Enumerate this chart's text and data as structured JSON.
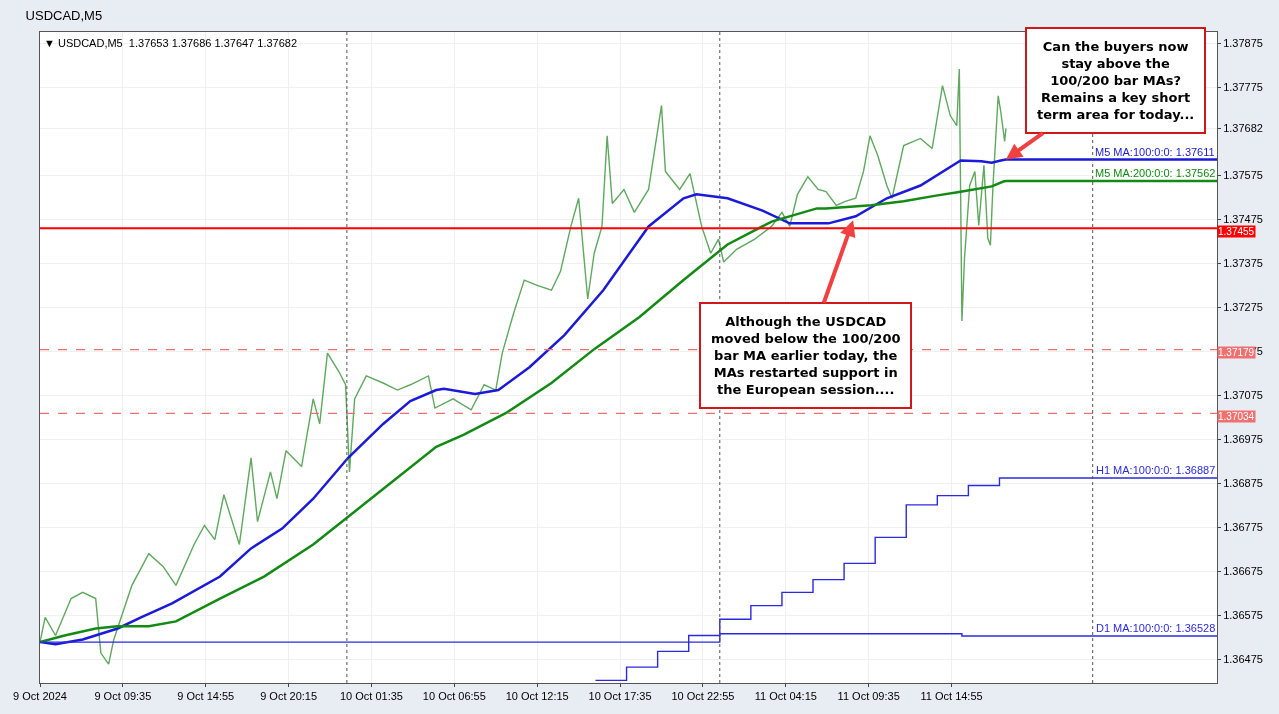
{
  "chart_data": {
    "type": "line",
    "title": "USDCAD,M5",
    "subtitle": "▼ USDCAD,M5  1.37653 1.37686 1.37647 1.37682",
    "x": [
      "2024-10-09T04:15",
      "2024-10-09T04:35",
      "2024-10-09T05:15",
      "2024-10-09T06:15",
      "2024-10-09T07:00",
      "2024-10-09T07:50",
      "2024-10-09T08:10",
      "2024-10-09T08:40",
      "2024-10-09T09:00",
      "2024-10-09T10:10",
      "2024-10-09T11:15",
      "2024-10-09T12:10",
      "2024-10-09T13:00",
      "2024-10-09T14:10",
      "2024-10-09T14:50",
      "2024-10-09T15:30",
      "2024-10-09T16:05",
      "2024-10-09T17:05",
      "2024-10-09T17:50",
      "2024-10-09T18:15",
      "2024-10-09T19:05",
      "2024-10-09T19:30",
      "2024-10-09T20:05",
      "2024-10-09T21:05",
      "2024-10-09T21:50",
      "2024-10-09T22:15",
      "2024-10-09T22:45",
      "2024-10-09T23:30",
      "2024-10-09T23:55",
      "2024-10-10T00:10",
      "2024-10-10T00:30",
      "2024-10-10T01:15",
      "2024-10-10T02:20",
      "2024-10-10T03:15",
      "2024-10-10T04:05",
      "2024-10-10T05:15",
      "2024-10-10T05:40",
      "2024-10-10T06:50",
      "2024-10-10T08:00",
      "2024-10-10T08:50",
      "2024-10-10T09:35",
      "2024-10-10T10:00",
      "2024-10-10T10:45",
      "2024-10-10T11:25",
      "2024-10-10T12:15",
      "2024-10-10T13:10",
      "2024-10-10T13:45",
      "2024-10-10T14:25",
      "2024-10-10T14:55",
      "2024-10-10T15:30",
      "2024-10-10T15:55",
      "2024-10-10T16:25",
      "2024-10-10T16:45",
      "2024-10-10T17:05",
      "2024-10-10T17:50",
      "2024-10-10T18:30",
      "2024-10-10T19:25",
      "2024-10-10T20:15",
      "2024-10-10T20:30",
      "2024-10-10T21:25",
      "2024-10-10T22:05",
      "2024-10-10T22:50",
      "2024-10-10T23:25",
      "2024-10-10T23:55",
      "2024-10-11T00:15",
      "2024-10-11T01:05",
      "2024-10-11T02:15",
      "2024-10-11T03:20",
      "2024-10-11T04:00",
      "2024-10-11T04:30",
      "2024-10-11T05:00",
      "2024-10-11T05:40",
      "2024-10-11T06:20",
      "2024-10-11T06:50",
      "2024-10-11T07:30",
      "2024-10-11T08:05",
      "2024-10-11T08:45",
      "2024-10-11T09:15",
      "2024-10-11T09:40",
      "2024-10-11T10:10",
      "2024-10-11T10:45",
      "2024-10-11T11:05",
      "2024-10-11T11:50",
      "2024-10-11T12:55",
      "2024-10-11T13:40",
      "2024-10-11T14:20",
      "2024-10-11T14:50",
      "2024-10-11T15:15",
      "2024-10-11T15:25",
      "2024-10-11T15:35",
      "2024-10-11T15:45",
      "2024-10-11T16:05",
      "2024-10-11T16:25",
      "2024-10-11T16:40",
      "2024-10-11T17:00",
      "2024-10-11T17:15",
      "2024-10-11T17:25",
      "2024-10-11T17:35",
      "2024-10-11T17:55",
      "2024-10-11T18:05",
      "2024-10-11T18:20",
      "2024-10-11T18:25"
    ],
    "series": [
      {
        "color": "#5fa85f",
        "values": [
          1.36514,
          1.3657,
          1.36529,
          1.36613,
          1.36627,
          1.36613,
          1.36489,
          1.36464,
          1.3652,
          1.36643,
          1.36715,
          1.36686,
          1.36643,
          1.36736,
          1.36779,
          1.36747,
          1.36849,
          1.36736,
          1.36933,
          1.36788,
          1.36901,
          1.3684,
          1.36949,
          1.36913,
          1.37067,
          1.3701,
          1.37171,
          1.37128,
          1.37099,
          1.36901,
          1.37067,
          1.37119,
          1.37103,
          1.37087,
          1.37099,
          1.37119,
          1.37046,
          1.37067,
          1.37042,
          1.37099,
          1.37087,
          1.37171,
          1.37264,
          1.37337,
          1.37325,
          1.37314,
          1.37357,
          1.37459,
          1.37523,
          1.37294,
          1.37398,
          1.37459,
          1.37665,
          1.37511,
          1.37543,
          1.37491,
          1.37543,
          1.37734,
          1.37584,
          1.37543,
          1.37579,
          1.37459,
          1.37398,
          1.3743,
          1.37378,
          1.37407,
          1.3743,
          1.37459,
          1.37491,
          1.37459,
          1.37532,
          1.37572,
          1.37543,
          1.37538,
          1.37507,
          1.37516,
          1.37523,
          1.37584,
          1.37665,
          1.3762,
          1.37552,
          1.37523,
          1.37643,
          1.37659,
          1.37636,
          1.37779,
          1.37711,
          1.37688,
          1.37817,
          1.37244,
          1.37387,
          1.37552,
          1.37584,
          1.37461,
          1.37598,
          1.37432,
          1.37416,
          1.37552,
          1.37756,
          1.3772,
          1.37652,
          1.37682
        ]
      },
      {
        "name": "M5 MA:100:0:0: 1.37611",
        "color": "#1a1ad8",
        "x": [
          "2024-10-09T04:15",
          "2024-10-09T05:15",
          "2024-10-09T07:00",
          "2024-10-09T09:15",
          "2024-10-09T10:45",
          "2024-10-09T12:45",
          "2024-10-09T15:50",
          "2024-10-09T17:50",
          "2024-10-09T19:50",
          "2024-10-09T21:50",
          "2024-10-10T00:05",
          "2024-10-10T02:20",
          "2024-10-10T04:05",
          "2024-10-10T05:45",
          "2024-10-10T06:15",
          "2024-10-10T08:15",
          "2024-10-10T09:45",
          "2024-10-10T11:45",
          "2024-10-10T14:00",
          "2024-10-10T16:30",
          "2024-10-10T19:25",
          "2024-10-10T21:40",
          "2024-10-10T22:30",
          "2024-10-11T00:30",
          "2024-10-11T02:45",
          "2024-10-11T04:30",
          "2024-10-11T07:00",
          "2024-10-11T08:45",
          "2024-10-11T10:45",
          "2024-10-11T12:55",
          "2024-10-11T15:30",
          "2024-10-11T16:50",
          "2024-10-11T17:30",
          "2024-10-11T18:05",
          "2024-10-11T18:25",
          "2024-10-12T08:00"
        ],
        "values": [
          1.36514,
          1.36509,
          1.3652,
          1.36545,
          1.3657,
          1.36602,
          1.36663,
          1.36727,
          1.36772,
          1.3684,
          1.36933,
          1.3701,
          1.37062,
          1.37087,
          1.3709,
          1.37078,
          1.37087,
          1.37139,
          1.37212,
          1.37314,
          1.37459,
          1.37523,
          1.37532,
          1.37523,
          1.37495,
          1.37466,
          1.37466,
          1.37482,
          1.37523,
          1.37552,
          1.37609,
          1.37607,
          1.37604,
          1.37609,
          1.37611,
          1.37611
        ]
      },
      {
        "name": "M5 MA:200:0:0: 1.37562",
        "color": "#138a13",
        "x": [
          "2024-10-09T04:15",
          "2024-10-09T05:50",
          "2024-10-09T07:50",
          "2024-10-09T09:15",
          "2024-10-09T11:15",
          "2024-10-09T13:00",
          "2024-10-09T15:50",
          "2024-10-09T18:40",
          "2024-10-09T21:50",
          "2024-10-10T00:05",
          "2024-10-10T03:00",
          "2024-10-10T05:45",
          "2024-10-10T07:30",
          "2024-10-10T10:15",
          "2024-10-10T13:10",
          "2024-10-10T15:55",
          "2024-10-10T18:50",
          "2024-10-10T21:40",
          "2024-10-11T00:30",
          "2024-10-11T03:20",
          "2024-10-11T06:15",
          "2024-10-11T06:50",
          "2024-10-11T09:45",
          "2024-10-11T11:50",
          "2024-10-11T13:55",
          "2024-10-11T15:30",
          "2024-10-11T17:30",
          "2024-10-11T18:15",
          "2024-10-11T18:25",
          "2024-10-12T08:00"
        ],
        "values": [
          1.36514,
          1.36529,
          1.36545,
          1.3655,
          1.3655,
          1.36561,
          1.36613,
          1.36663,
          1.36736,
          1.36799,
          1.36881,
          1.36958,
          1.36985,
          1.37035,
          1.37103,
          1.3718,
          1.37253,
          1.37337,
          1.37418,
          1.3747,
          1.375,
          1.375,
          1.37507,
          1.37516,
          1.37529,
          1.37538,
          1.3755,
          1.37561,
          1.37562,
          1.37562
        ]
      },
      {
        "name": "H1 MA:100:0:0: 1.36887",
        "color": "#2a2ae0",
        "type": "step",
        "x": [
          "2024-10-10T16:00",
          "2024-10-10T18:00",
          "2024-10-10T20:00",
          "2024-10-10T22:00",
          "2024-10-11T00:00",
          "2024-10-11T02:00",
          "2024-10-11T04:00",
          "2024-10-11T06:00",
          "2024-10-11T08:00",
          "2024-10-11T10:00",
          "2024-10-11T12:00",
          "2024-10-11T14:00",
          "2024-10-11T16:00",
          "2024-10-11T18:00",
          "2024-10-12T08:00"
        ],
        "values": [
          1.36427,
          1.36457,
          1.36493,
          1.36529,
          1.36566,
          1.36597,
          1.36627,
          1.36656,
          1.36693,
          1.36752,
          1.36826,
          1.36847,
          1.3687,
          1.36887,
          1.36887
        ]
      },
      {
        "name": "D1 MA:100:0:0: 1.36528",
        "color": "#2a2ae0",
        "type": "step",
        "x": [
          "2024-10-09T04:15",
          "2024-10-11T00:00",
          "2024-10-11T15:35",
          "2024-10-12T08:00"
        ],
        "values": [
          1.36514,
          1.36533,
          1.36528,
          1.36528
        ]
      }
    ],
    "xlim": [
      "2024-10-09T04:15",
      "2024-10-12T08:00"
    ],
    "xticks": [
      {
        "value": "2024-10-09T04:15",
        "label": "9 Oct 2024"
      },
      {
        "value": "2024-10-09T09:35",
        "label": "9 Oct 09:35"
      },
      {
        "value": "2024-10-09T14:55",
        "label": "9 Oct 14:55"
      },
      {
        "value": "2024-10-09T20:15",
        "label": "9 Oct 20:15"
      },
      {
        "value": "2024-10-10T01:35",
        "label": "10 Oct 01:35"
      },
      {
        "value": "2024-10-10T06:55",
        "label": "10 Oct 06:55"
      },
      {
        "value": "2024-10-10T12:15",
        "label": "10 Oct 12:15"
      },
      {
        "value": "2024-10-10T17:35",
        "label": "10 Oct 17:35"
      },
      {
        "value": "2024-10-10T22:55",
        "label": "10 Oct 22:55"
      },
      {
        "value": "2024-10-11T04:15",
        "label": "11 Oct 04:15"
      },
      {
        "value": "2024-10-11T09:35",
        "label": "11 Oct 09:35"
      },
      {
        "value": "2024-10-11T14:55",
        "label": "11 Oct 14:55"
      }
    ],
    "ylim": [
      1.36421,
      1.37901
    ],
    "yticks": [
      1.36475,
      1.36575,
      1.36675,
      1.36775,
      1.36875,
      1.36975,
      1.37075,
      1.37175,
      1.37275,
      1.37375,
      1.37475,
      1.37575,
      1.37682,
      1.37775,
      1.37875
    ],
    "ref_lines": [
      {
        "axis": "y",
        "value": 1.37455,
        "label": "1.37455",
        "color": "#ff0000",
        "line_style": "solid"
      },
      {
        "axis": "y",
        "value": 1.37179,
        "label": "1.37179",
        "color": "#f07070",
        "line_style": "dashed"
      },
      {
        "axis": "y",
        "value": 1.37034,
        "label": "1.37034",
        "color": "#f07070",
        "line_style": "dashed"
      },
      {
        "axis": "x",
        "value": "2024-10-10T00:00",
        "color": "#555555",
        "line_style": "dotted"
      },
      {
        "axis": "x",
        "value": "2024-10-11T00:00",
        "color": "#555555",
        "line_style": "dotted"
      },
      {
        "axis": "x",
        "value": "2024-10-12T00:00",
        "color": "#555555",
        "line_style": "dotted"
      }
    ],
    "annotations": [
      {
        "text": "Although the USDCAD\nmoved below the 100/200\nbar MA earlier today, the\nMAs restarted support in\nthe European session....",
        "x": "2024-10-11T08:35",
        "y": 1.37473
      },
      {
        "text": "Can the buyers now\nstay above the\n100/200 bar MAs?\nRemains a key short\nterm area for today...",
        "x": "2024-10-11T18:25",
        "y": 1.37611
      }
    ],
    "grid": true,
    "legend": false,
    "marker": "none",
    "line_style": "solid"
  }
}
